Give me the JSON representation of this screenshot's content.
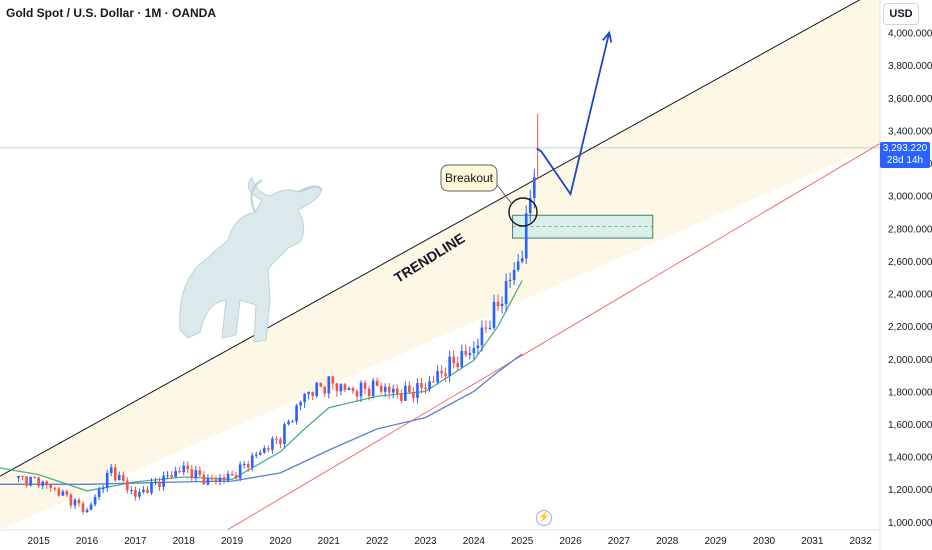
{
  "header": {
    "title": "Gold Spot / U.S. Dollar · 1M · OANDA",
    "currency": "USD"
  },
  "price_tag": {
    "price": "3,293.220",
    "countdown": "28d 14h"
  },
  "annotations": {
    "breakout": "Breakout",
    "trendline": "TRENDLINE"
  },
  "colors": {
    "up": "#2962ff",
    "down": "#ef5350",
    "ma_fast": "#4caf8f",
    "ma_slow": "#5b7fd4",
    "trendline": "#131722",
    "lower_line": "#ef5350",
    "channel_fill": "#fdf6e3",
    "zone_fill": "#d8f0ea",
    "zone_border": "#4a7a70",
    "projection": "#1a46c8"
  },
  "chart_data": {
    "type": "candlestick",
    "title": "Gold Spot / U.S. Dollar · 1M · OANDA",
    "xlabel": "",
    "ylabel": "USD",
    "x_ticks": [
      "2015",
      "2016",
      "2017",
      "2018",
      "2019",
      "2020",
      "2021",
      "2022",
      "2023",
      "2024",
      "2025",
      "2026",
      "2027",
      "2028",
      "2029",
      "2030",
      "2031",
      "2032"
    ],
    "y_ticks": [
      1000,
      1200,
      1400,
      1600,
      1800,
      2000,
      2200,
      2400,
      2600,
      2800,
      3000,
      3200,
      3400,
      3600,
      3800,
      4000
    ],
    "y_tick_labels": [
      "1,000.000",
      "1,200.000",
      "1,400.000",
      "1,600.000",
      "1,800.000",
      "2,000.000",
      "2,200.000",
      "2,400.000",
      "2,600.000",
      "2,800.000",
      "3,000.000",
      "3,200.000",
      "3,400.000",
      "3,600.000",
      "3,800.000",
      "4,000.000"
    ],
    "ylim": [
      950,
      4200
    ],
    "xlim": [
      2014.2,
      2032.4
    ],
    "last_price": 3293.22,
    "yearly_closes": [
      [
        2014.5,
        1270
      ],
      [
        2015.0,
        1250
      ],
      [
        2015.5,
        1170
      ],
      [
        2016.0,
        1065
      ],
      [
        2016.5,
        1320
      ],
      [
        2017.0,
        1160
      ],
      [
        2017.5,
        1250
      ],
      [
        2018.0,
        1330
      ],
      [
        2018.5,
        1250
      ],
      [
        2019.0,
        1280
      ],
      [
        2019.5,
        1410
      ],
      [
        2020.0,
        1520
      ],
      [
        2020.5,
        1780
      ],
      [
        2021.0,
        1850
      ],
      [
        2021.5,
        1800
      ],
      [
        2022.0,
        1830
      ],
      [
        2022.5,
        1780
      ],
      [
        2023.0,
        1830
      ],
      [
        2023.5,
        1960
      ],
      [
        2024.0,
        2060
      ],
      [
        2024.5,
        2330
      ],
      [
        2025.0,
        2650
      ],
      [
        2025.3,
        3290
      ]
    ],
    "trendline": {
      "points": [
        [
          2014.2,
          1280
        ],
        [
          2032.4,
          4270
        ]
      ]
    },
    "lower_line": {
      "points": [
        [
          2018.9,
          950
        ],
        [
          2032.4,
          3320
        ]
      ]
    },
    "zone": {
      "x": [
        2024.8,
        2027.7
      ],
      "y": [
        2740,
        2880
      ]
    },
    "projection": [
      [
        2025.3,
        3290
      ],
      [
        2025.4,
        3270
      ],
      [
        2026.0,
        3010
      ],
      [
        2026.8,
        4000
      ]
    ],
    "series": [
      {
        "name": "",
        "type": "ma",
        "values": [
          [
            2014.2,
            1330
          ],
          [
            2015.0,
            1290
          ],
          [
            2016.0,
            1190
          ],
          [
            2017.0,
            1245
          ],
          [
            2018.0,
            1275
          ],
          [
            2019.0,
            1260
          ],
          [
            2020.0,
            1430
          ],
          [
            2020.5,
            1570
          ],
          [
            2021.0,
            1700
          ],
          [
            2022.0,
            1770
          ],
          [
            2023.0,
            1800
          ],
          [
            2024.0,
            1990
          ],
          [
            2024.5,
            2200
          ],
          [
            2025.0,
            2480
          ]
        ]
      },
      {
        "name": "",
        "type": "ma",
        "values": [
          [
            2014.2,
            1230
          ],
          [
            2016.0,
            1230
          ],
          [
            2018.0,
            1245
          ],
          [
            2019.0,
            1250
          ],
          [
            2020.0,
            1300
          ],
          [
            2021.0,
            1440
          ],
          [
            2022.0,
            1570
          ],
          [
            2023.0,
            1640
          ],
          [
            2024.0,
            1800
          ],
          [
            2024.5,
            1920
          ],
          [
            2025.0,
            2030
          ]
        ]
      }
    ]
  }
}
